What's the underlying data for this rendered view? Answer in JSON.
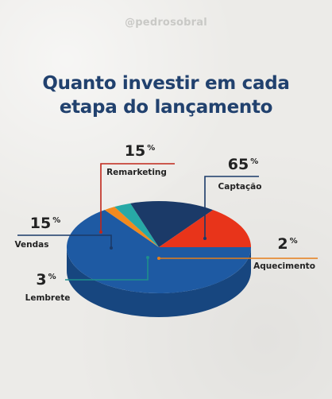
{
  "handle": "@pedrosobral",
  "title_lines": [
    "Quanto investir em cada",
    "etapa do lançamento"
  ],
  "chart_data": {
    "type": "pie",
    "title": "Quanto investir em cada etapa do lançamento",
    "slices": [
      {
        "label": "Captação",
        "value": 65,
        "display": "65",
        "unit": "%",
        "color": "#1e5aa3"
      },
      {
        "label": "Aquecimento",
        "value": 2,
        "display": "2",
        "unit": "%",
        "color": "#f28a1e"
      },
      {
        "label": "Lembrete",
        "value": 3,
        "display": "3",
        "unit": "%",
        "color": "#27a9a6"
      },
      {
        "label": "Vendas",
        "value": 15,
        "display": "15",
        "unit": "%",
        "color": "#1b3a68"
      },
      {
        "label": "Remarketing",
        "value": 15,
        "display": "15",
        "unit": "%",
        "color": "#e8341a"
      }
    ]
  }
}
